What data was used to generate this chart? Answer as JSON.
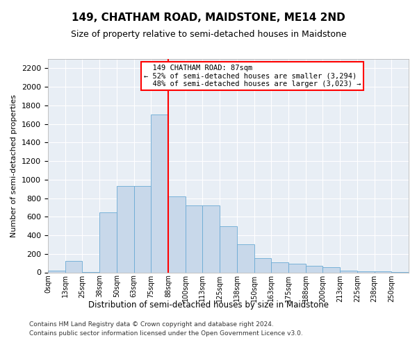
{
  "title1": "149, CHATHAM ROAD, MAIDSTONE, ME14 2ND",
  "title2": "Size of property relative to semi-detached houses in Maidstone",
  "xlabel": "Distribution of semi-detached houses by size in Maidstone",
  "ylabel": "Number of semi-detached properties",
  "bar_color": "#c8d8ea",
  "bar_edge_color": "#6aaad4",
  "categories": [
    "0sqm",
    "13sqm",
    "25sqm",
    "38sqm",
    "50sqm",
    "63sqm",
    "75sqm",
    "88sqm",
    "100sqm",
    "113sqm",
    "125sqm",
    "138sqm",
    "150sqm",
    "163sqm",
    "175sqm",
    "188sqm",
    "200sqm",
    "213sqm",
    "225sqm",
    "238sqm",
    "250sqm"
  ],
  "values": [
    15,
    120,
    2,
    650,
    930,
    930,
    1700,
    820,
    720,
    720,
    500,
    300,
    150,
    110,
    90,
    70,
    55,
    18,
    12,
    10,
    5
  ],
  "ylim": [
    0,
    2300
  ],
  "yticks": [
    0,
    200,
    400,
    600,
    800,
    1000,
    1200,
    1400,
    1600,
    1800,
    2000,
    2200
  ],
  "red_line_bin": 7,
  "pct_smaller": 52,
  "pct_larger": 48,
  "n_smaller": 3294,
  "n_larger": 3023,
  "address_label": "149 CHATHAM ROAD: 87sqm",
  "footnote1": "Contains HM Land Registry data © Crown copyright and database right 2024.",
  "footnote2": "Contains public sector information licensed under the Open Government Licence v3.0.",
  "bg_color": "#e8eef5"
}
